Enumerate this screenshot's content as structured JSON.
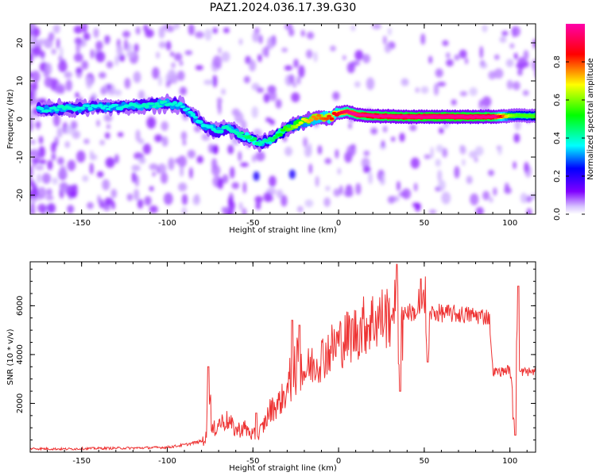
{
  "figure": {
    "title": "PAZ1.2024.036.17.39.G30"
  },
  "chart_data": [
    {
      "type": "heatmap",
      "xlabel": "Height of straight line (km)",
      "ylabel": "Frequency (Hz)",
      "xlim": [
        -180,
        115
      ],
      "ylim": [
        -25,
        25
      ],
      "xticks": [
        -150,
        -100,
        -50,
        0,
        50,
        100
      ],
      "yticks": [
        -20,
        -10,
        0,
        10,
        20
      ],
      "colorbar": {
        "label": "Normalized spectral amplitude",
        "range": [
          0,
          1
        ],
        "ticks": [
          0.0,
          0.2,
          0.4,
          0.6,
          0.8
        ],
        "colormap": [
          "#ffffff",
          "#7f00ff",
          "#0000ff",
          "#00ffff",
          "#00ff00",
          "#ffff00",
          "#ff0000",
          "#ff00aa"
        ]
      },
      "ridge": {
        "x": [
          -175,
          -160,
          -145,
          -130,
          -115,
          -100,
          -92,
          -85,
          -80,
          -75,
          -70,
          -65,
          -60,
          -55,
          -50,
          -45,
          -40,
          -35,
          -30,
          -25,
          -20,
          -15,
          -10,
          -5,
          0,
          5,
          10,
          20,
          30,
          40,
          50,
          60,
          70,
          80,
          90,
          100,
          105,
          110,
          115
        ],
        "freq": [
          2.5,
          2.8,
          3.0,
          3.2,
          3.5,
          4.0,
          3.5,
          1.0,
          -1.5,
          -2.5,
          -3.0,
          -2.0,
          -3.5,
          -4.5,
          -5.5,
          -6.5,
          -5.5,
          -4.0,
          -2.5,
          -1.5,
          -0.5,
          0.0,
          0.5,
          0.3,
          1.5,
          2.0,
          1.2,
          0.8,
          0.7,
          0.6,
          0.6,
          0.6,
          0.6,
          0.6,
          0.6,
          0.8,
          1.0,
          0.8,
          0.8
        ],
        "amplitude": [
          0.3,
          0.32,
          0.3,
          0.3,
          0.32,
          0.32,
          0.3,
          0.3,
          0.3,
          0.3,
          0.32,
          0.32,
          0.32,
          0.35,
          0.38,
          0.32,
          0.35,
          0.4,
          0.45,
          0.5,
          0.55,
          0.6,
          0.62,
          0.65,
          0.7,
          0.75,
          0.8,
          0.85,
          0.88,
          0.88,
          0.9,
          0.9,
          0.9,
          0.88,
          0.85,
          0.5,
          0.45,
          0.45,
          0.45
        ]
      }
    },
    {
      "type": "line",
      "xlabel": "Height of straight line (km)",
      "ylabel": "SNR (10 * v/v)",
      "xlim": [
        -180,
        115
      ],
      "ylim": [
        0,
        7800
      ],
      "xticks": [
        -150,
        -100,
        -50,
        0,
        50,
        100
      ],
      "yticks": [
        2000,
        4000,
        6000
      ],
      "series": [
        {
          "color": "#ee3333",
          "x": [
            -180,
            -160,
            -140,
            -120,
            -100,
            -90,
            -80,
            -75,
            -70,
            -65,
            -60,
            -55,
            -50,
            -45,
            -40,
            -35,
            -30,
            -25,
            -20,
            -15,
            -10,
            -5,
            0,
            5,
            10,
            15,
            20,
            25,
            30,
            32,
            35,
            40,
            45,
            50,
            55,
            60,
            70,
            80,
            88,
            90,
            95,
            100,
            103,
            105,
            110,
            115
          ],
          "values": [
            150,
            130,
            160,
            170,
            200,
            300,
            450,
            700,
            1200,
            1300,
            900,
            1000,
            700,
            900,
            1700,
            2000,
            2500,
            3100,
            3300,
            3600,
            3900,
            4200,
            4500,
            4700,
            4900,
            5200,
            5400,
            5500,
            5600,
            5550,
            5700,
            5750,
            5700,
            5750,
            5700,
            5700,
            5650,
            5600,
            5550,
            3300,
            3300,
            3400,
            1500,
            3300,
            3300,
            3300
          ],
          "spikes": [
            {
              "x": -76,
              "y": 3500
            },
            {
              "x": -48,
              "y": 1600
            },
            {
              "x": -27,
              "y": 5400
            },
            {
              "x": -23,
              "y": 5200
            },
            {
              "x": 34,
              "y": 7700
            },
            {
              "x": 36,
              "y": 2500
            },
            {
              "x": 48,
              "y": 7100
            },
            {
              "x": 51,
              "y": 7200
            },
            {
              "x": 52,
              "y": 3700
            },
            {
              "x": 103,
              "y": 700
            },
            {
              "x": 105,
              "y": 6800
            }
          ]
        }
      ]
    }
  ]
}
